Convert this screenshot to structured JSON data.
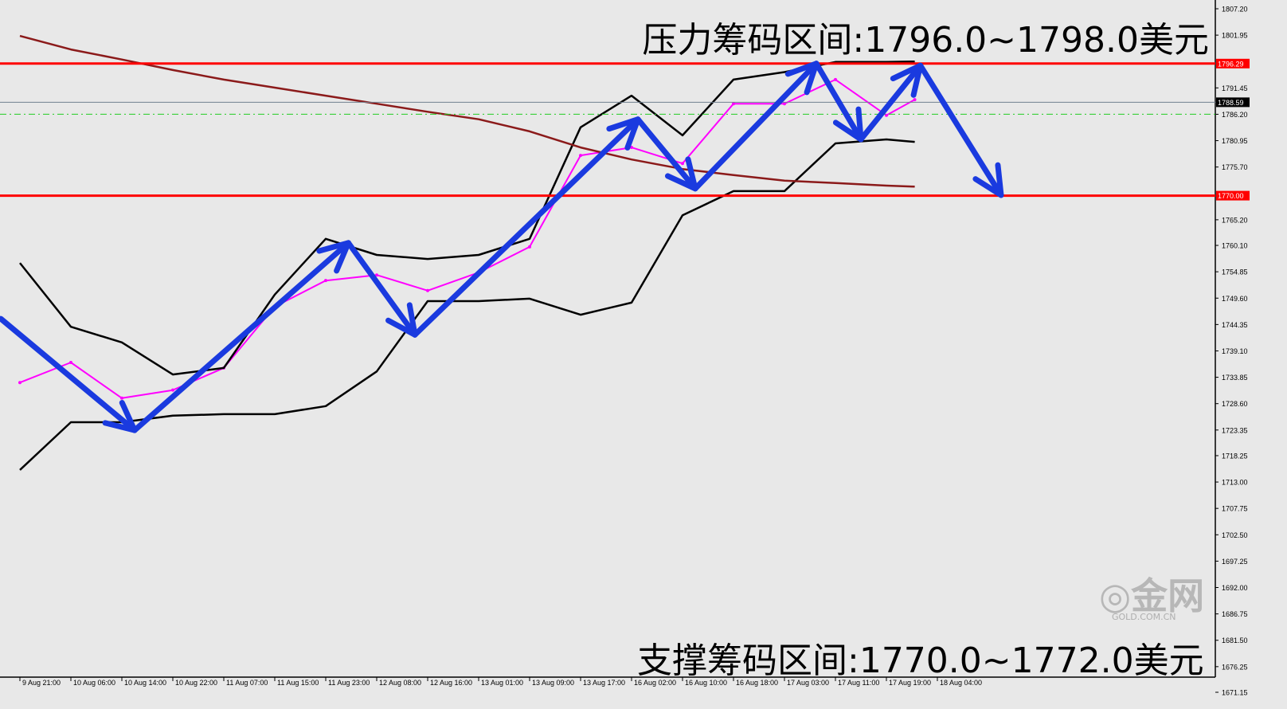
{
  "chart_data": {
    "type": "line",
    "title_top": "压力筹码区间:1796.0~1798.0美元",
    "title_bottom": "支撑筹码区间:1770.0~1772.0美元",
    "y_ticks": [
      "1807.20",
      "1801.95",
      "1791.45",
      "1786.20",
      "1780.95",
      "1775.70",
      "1765.20",
      "1760.10",
      "1754.85",
      "1749.60",
      "1744.35",
      "1739.10",
      "1733.85",
      "1728.60",
      "1723.35",
      "1718.25",
      "1713.00",
      "1707.75",
      "1702.50",
      "1697.25",
      "1692.00",
      "1686.75",
      "1681.50",
      "1676.25",
      "1671.15"
    ],
    "ylim": [
      1671.15,
      1807.2
    ],
    "x_ticks": [
      "9 Aug 21:00",
      "10 Aug 06:00",
      "10 Aug 14:00",
      "10 Aug 22:00",
      "11 Aug 07:00",
      "11 Aug 15:00",
      "11 Aug 23:00",
      "12 Aug 08:00",
      "12 Aug 16:00",
      "13 Aug 01:00",
      "13 Aug 09:00",
      "13 Aug 17:00",
      "16 Aug 02:00",
      "16 Aug 10:00",
      "16 Aug 18:00",
      "17 Aug 03:00",
      "17 Aug 11:00",
      "17 Aug 19:00",
      "18 Aug 04:00"
    ],
    "x": [
      "9 Aug 21:00",
      "10 Aug 06:00",
      "10 Aug 14:00",
      "10 Aug 22:00",
      "11 Aug 07:00",
      "11 Aug 15:00",
      "11 Aug 23:00",
      "12 Aug 08:00",
      "12 Aug 16:00",
      "13 Aug 01:00",
      "13 Aug 09:00",
      "13 Aug 17:00",
      "16 Aug 02:00",
      "16 Aug 10:00",
      "16 Aug 18:00",
      "17 Aug 03:00",
      "17 Aug 11:00",
      "17 Aug 19:00",
      "18 Aug 00:00"
    ],
    "series": [
      {
        "key": "price",
        "color": "#ff00ff",
        "values": [
          1732.8,
          1736.8,
          1729.7,
          1731.3,
          1735.7,
          1747.9,
          1753.1,
          1754.2,
          1751.1,
          1754.7,
          1759.8,
          1778.0,
          1779.6,
          1776.4,
          1788.3,
          1788.3,
          1793.1,
          1786.0,
          1789.1
        ]
      },
      {
        "key": "upper_band",
        "color": "#000000",
        "values": [
          1756.6,
          1743.9,
          1740.8,
          1734.4,
          1735.7,
          1750.3,
          1761.4,
          1758.2,
          1757.4,
          1758.2,
          1761.4,
          1783.6,
          1789.9,
          1782.0,
          1793.1,
          1794.6,
          1796.6,
          1796.6,
          1796.7
        ]
      },
      {
        "key": "lower_band",
        "color": "#000000",
        "values": [
          1715.4,
          1724.9,
          1724.9,
          1726.2,
          1726.5,
          1726.5,
          1728.1,
          1735.0,
          1749.0,
          1749.0,
          1749.5,
          1746.3,
          1748.7,
          1766.1,
          1770.9,
          1770.9,
          1780.4,
          1781.2,
          1780.7
        ]
      },
      {
        "key": "ma200",
        "color": "#8b1a1a",
        "values": [
          1801.8,
          1799.1,
          1797.1,
          1795.0,
          1793.1,
          1791.5,
          1789.9,
          1788.3,
          1786.7,
          1785.2,
          1782.8,
          1779.6,
          1777.2,
          1775.3,
          1774.1,
          1773.0,
          1772.5,
          1772.0,
          1771.8
        ]
      }
    ],
    "hlines": [
      {
        "value": 1796.29,
        "label": "1796.29",
        "color": "#ff0000",
        "style": "solid"
      },
      {
        "value": 1770.0,
        "label": "1770.00",
        "color": "#ff0000",
        "style": "solid"
      },
      {
        "value": 1788.59,
        "label": "1788.59",
        "color": "#708090",
        "style": "thin"
      },
      {
        "value": 1786.2,
        "color": "#22cc22",
        "style": "dashdot"
      }
    ],
    "arrow_path": {
      "color": "#1a3adf",
      "points": [
        [
          "9 Aug 18:00",
          1745.5
        ],
        [
          "10 Aug 16:00",
          1723.3
        ],
        [
          "12 Aug 03:00",
          1760.6
        ],
        [
          "12 Aug 14:00",
          1742.3
        ],
        [
          "16 Aug 03:00",
          1785.2
        ],
        [
          "16 Aug 12:00",
          1771.4
        ],
        [
          "17 Aug 08:00",
          1796.3
        ],
        [
          "17 Aug 15:00",
          1781.2
        ],
        [
          "18 Aug 01:00",
          1795.9
        ],
        [
          "18 Aug 14:00",
          1770.1
        ]
      ]
    },
    "grid": false,
    "watermark": {
      "logo": "金网",
      "sub": "GOLD.COM.CN"
    }
  }
}
